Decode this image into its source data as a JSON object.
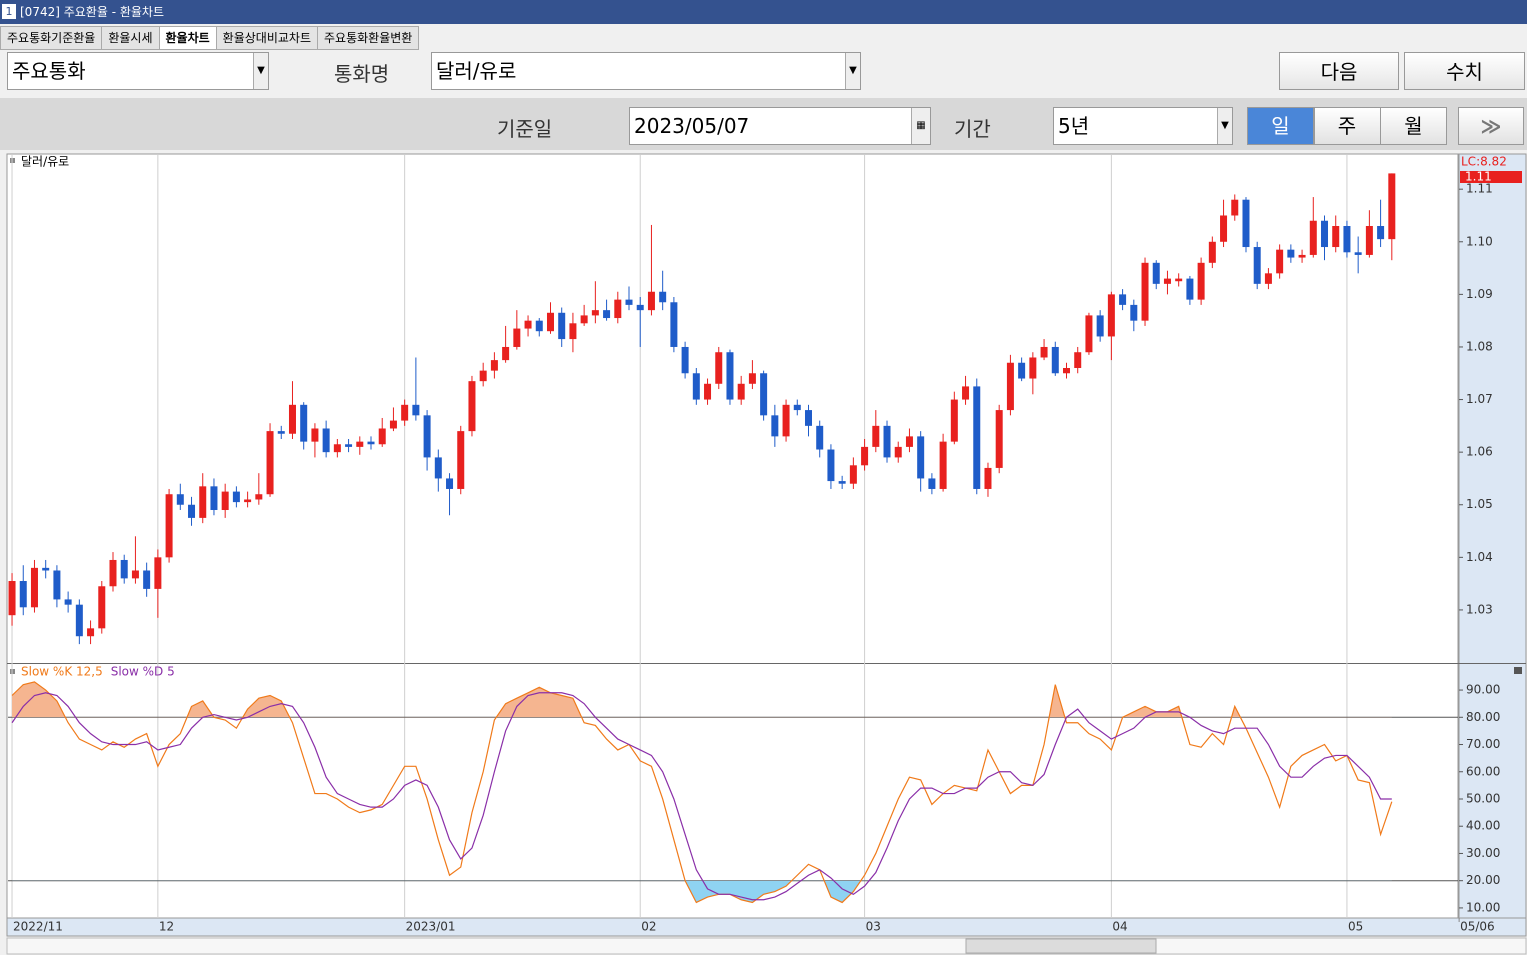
{
  "ui": {
    "window_title": "[0742] 주요환율 - 환율차트",
    "window_number": "1",
    "tabs": [
      "주요통화기준환율",
      "환율시세",
      "환율차트",
      "환율상대비교차트",
      "주요통화환율변환"
    ],
    "currency_group": "주요통화",
    "currency_name_label": "통화명",
    "currency_name": "달러/유로",
    "next_button": "다음",
    "values_button": "수치",
    "base_date_label": "기준일",
    "base_date": "2023/05/07",
    "period_label": "기간",
    "period": "5년",
    "intervals": [
      "일",
      "주",
      "월"
    ]
  },
  "chart_data": [
    {
      "type": "candlestick",
      "title": "달러/유로",
      "up_color": "#e8211f",
      "down_color": "#1f5cc9",
      "annotations": [
        "LC:8.82",
        "1.11"
      ],
      "xlim": [
        -0.36,
        128.9
      ],
      "xticks": [
        {
          "value": 0,
          "label": "2022/11"
        },
        {
          "value": 13,
          "label": "12"
        },
        {
          "value": 35,
          "label": "2023/01"
        },
        {
          "value": 56,
          "label": "02"
        },
        {
          "value": 76,
          "label": "03"
        },
        {
          "value": 98,
          "label": "04"
        },
        {
          "value": 119,
          "label": "05"
        },
        {
          "value": 129,
          "label": "05/06"
        }
      ],
      "ylim": [
        1.0201,
        1.1165
      ],
      "yticks": [
        1.03,
        1.04,
        1.05,
        1.06,
        1.07,
        1.08,
        1.09,
        {
          "value": 1.1,
          "label": "1.10"
        },
        1.11
      ],
      "ohlc": [
        [
          1.029,
          1.037,
          1.027,
          1.0355
        ],
        [
          1.0355,
          1.0385,
          1.029,
          1.0305
        ],
        [
          1.0305,
          1.0395,
          1.0295,
          1.038
        ],
        [
          1.038,
          1.0395,
          1.036,
          1.0375
        ],
        [
          1.0375,
          1.0385,
          1.0305,
          1.032
        ],
        [
          1.032,
          1.0335,
          1.0295,
          1.031
        ],
        [
          1.031,
          1.032,
          1.0235,
          1.025
        ],
        [
          1.025,
          1.028,
          1.0235,
          1.0265
        ],
        [
          1.0265,
          1.0355,
          1.0255,
          1.0345
        ],
        [
          1.0345,
          1.041,
          1.0335,
          1.0395
        ],
        [
          1.0395,
          1.0405,
          1.035,
          1.036
        ],
        [
          1.036,
          1.044,
          1.035,
          1.0375
        ],
        [
          1.0375,
          1.039,
          1.0325,
          1.034
        ],
        [
          1.034,
          1.0415,
          1.0285,
          1.04
        ],
        [
          1.04,
          1.053,
          1.039,
          1.052
        ],
        [
          1.052,
          1.054,
          1.049,
          1.05
        ],
        [
          1.05,
          1.0515,
          1.046,
          1.0475
        ],
        [
          1.0475,
          1.056,
          1.0465,
          1.0535
        ],
        [
          1.0535,
          1.055,
          1.048,
          1.049
        ],
        [
          1.049,
          1.054,
          1.0475,
          1.0525
        ],
        [
          1.0525,
          1.0535,
          1.0495,
          1.0505
        ],
        [
          1.0505,
          1.0525,
          1.0495,
          1.051
        ],
        [
          1.051,
          1.056,
          1.05,
          1.052
        ],
        [
          1.052,
          1.0655,
          1.0515,
          1.064
        ],
        [
          1.064,
          1.065,
          1.0625,
          1.0635
        ],
        [
          1.0635,
          1.0735,
          1.0625,
          1.069
        ],
        [
          1.069,
          1.0695,
          1.0605,
          1.062
        ],
        [
          1.062,
          1.0655,
          1.059,
          1.0645
        ],
        [
          1.0645,
          1.066,
          1.059,
          1.06
        ],
        [
          1.06,
          1.0625,
          1.059,
          1.0615
        ],
        [
          1.0615,
          1.0625,
          1.06,
          1.061
        ],
        [
          1.061,
          1.063,
          1.0595,
          1.062
        ],
        [
          1.062,
          1.063,
          1.0605,
          1.0615
        ],
        [
          1.0615,
          1.0665,
          1.061,
          1.0645
        ],
        [
          1.0645,
          1.0685,
          1.064,
          1.066
        ],
        [
          1.066,
          1.07,
          1.065,
          1.069
        ],
        [
          1.069,
          1.078,
          1.066,
          1.067
        ],
        [
          1.067,
          1.068,
          1.0565,
          1.059
        ],
        [
          1.059,
          1.0605,
          1.0525,
          1.055
        ],
        [
          1.055,
          1.056,
          1.048,
          1.053
        ],
        [
          1.053,
          1.065,
          1.052,
          1.064
        ],
        [
          1.064,
          1.0745,
          1.063,
          1.0735
        ],
        [
          1.0735,
          1.077,
          1.0725,
          1.0755
        ],
        [
          1.0755,
          1.079,
          1.074,
          1.0775
        ],
        [
          1.0775,
          1.084,
          1.077,
          1.08
        ],
        [
          1.08,
          1.087,
          1.0795,
          1.0835
        ],
        [
          1.0835,
          1.086,
          1.082,
          1.085
        ],
        [
          1.085,
          1.0855,
          1.082,
          1.083
        ],
        [
          1.083,
          1.0885,
          1.0825,
          1.0865
        ],
        [
          1.0865,
          1.0875,
          1.08,
          1.0815
        ],
        [
          1.0815,
          1.0865,
          1.079,
          1.0845
        ],
        [
          1.0845,
          1.088,
          1.084,
          1.086
        ],
        [
          1.086,
          1.0925,
          1.0845,
          1.087
        ],
        [
          1.087,
          1.089,
          1.085,
          1.0855
        ],
        [
          1.0855,
          1.0905,
          1.0845,
          1.089
        ],
        [
          1.089,
          1.0915,
          1.087,
          1.088
        ],
        [
          1.088,
          1.0895,
          1.08,
          1.087
        ],
        [
          1.087,
          1.1032,
          1.086,
          1.0905
        ],
        [
          1.0905,
          1.0945,
          1.087,
          1.0885
        ],
        [
          1.0885,
          1.0895,
          1.079,
          1.08
        ],
        [
          1.08,
          1.081,
          1.074,
          1.075
        ],
        [
          1.075,
          1.076,
          1.069,
          1.07
        ],
        [
          1.07,
          1.074,
          1.069,
          1.073
        ],
        [
          1.073,
          1.08,
          1.072,
          1.079
        ],
        [
          1.079,
          1.0795,
          1.069,
          1.07
        ],
        [
          1.07,
          1.0745,
          1.069,
          1.073
        ],
        [
          1.073,
          1.0775,
          1.072,
          1.075
        ],
        [
          1.075,
          1.0755,
          1.066,
          1.067
        ],
        [
          1.067,
          1.069,
          1.061,
          1.063
        ],
        [
          1.063,
          1.07,
          1.062,
          1.069
        ],
        [
          1.069,
          1.07,
          1.067,
          1.068
        ],
        [
          1.068,
          1.069,
          1.063,
          1.065
        ],
        [
          1.065,
          1.066,
          1.059,
          1.0605
        ],
        [
          1.0605,
          1.0615,
          1.053,
          1.0545
        ],
        [
          1.0545,
          1.0555,
          1.053,
          1.054
        ],
        [
          1.054,
          1.059,
          1.053,
          1.0575
        ],
        [
          1.0575,
          1.0625,
          1.0565,
          1.061
        ],
        [
          1.061,
          1.068,
          1.06,
          1.065
        ],
        [
          1.065,
          1.066,
          1.058,
          1.059
        ],
        [
          1.059,
          1.062,
          1.058,
          1.061
        ],
        [
          1.061,
          1.0645,
          1.06,
          1.063
        ],
        [
          1.063,
          1.064,
          1.0525,
          1.055
        ],
        [
          1.055,
          1.056,
          1.052,
          1.053
        ],
        [
          1.053,
          1.0635,
          1.0525,
          1.062
        ],
        [
          1.062,
          1.0715,
          1.0615,
          1.07
        ],
        [
          1.07,
          1.0745,
          1.069,
          1.0725
        ],
        [
          1.0725,
          1.074,
          1.052,
          1.053
        ],
        [
          1.053,
          1.058,
          1.0515,
          1.057
        ],
        [
          1.057,
          1.069,
          1.056,
          1.068
        ],
        [
          1.068,
          1.0785,
          1.067,
          1.077
        ],
        [
          1.077,
          1.078,
          1.0735,
          1.074
        ],
        [
          1.074,
          1.079,
          1.071,
          1.078
        ],
        [
          1.078,
          1.0815,
          1.0775,
          1.08
        ],
        [
          1.08,
          1.081,
          1.0745,
          1.075
        ],
        [
          1.075,
          1.077,
          1.074,
          1.076
        ],
        [
          1.076,
          1.08,
          1.075,
          1.079
        ],
        [
          1.079,
          1.0865,
          1.0785,
          1.086
        ],
        [
          1.086,
          1.087,
          1.081,
          1.082
        ],
        [
          1.082,
          1.0905,
          1.0775,
          1.09
        ],
        [
          1.09,
          1.091,
          1.087,
          1.088
        ],
        [
          1.088,
          1.089,
          1.083,
          1.085
        ],
        [
          1.085,
          1.097,
          1.084,
          1.096
        ],
        [
          1.096,
          1.0965,
          1.091,
          1.092
        ],
        [
          1.092,
          1.0945,
          1.09,
          1.093
        ],
        [
          1.0925,
          1.094,
          1.0915,
          1.093
        ],
        [
          1.093,
          1.0935,
          1.088,
          1.089
        ],
        [
          1.089,
          1.097,
          1.088,
          1.096
        ],
        [
          1.096,
          1.101,
          1.095,
          1.1
        ],
        [
          1.1,
          1.108,
          1.099,
          1.105
        ],
        [
          1.105,
          1.109,
          1.104,
          1.108
        ],
        [
          1.108,
          1.1085,
          1.098,
          1.099
        ],
        [
          1.099,
          1.1,
          1.091,
          1.092
        ],
        [
          1.092,
          1.095,
          1.091,
          1.094
        ],
        [
          1.094,
          1.0995,
          1.093,
          1.0985
        ],
        [
          1.0985,
          1.0995,
          1.096,
          1.097
        ],
        [
          1.097,
          1.0985,
          1.096,
          1.0975
        ],
        [
          1.0975,
          1.1085,
          1.097,
          1.104
        ],
        [
          1.104,
          1.105,
          1.0965,
          1.099
        ],
        [
          1.099,
          1.105,
          1.098,
          1.103
        ],
        [
          1.103,
          1.104,
          1.097,
          1.098
        ],
        [
          1.098,
          1.101,
          1.094,
          1.0975
        ],
        [
          1.0975,
          1.106,
          1.097,
          1.103
        ],
        [
          1.103,
          1.108,
          1.099,
          1.1005
        ],
        [
          1.1005,
          1.113,
          1.0965,
          1.113
        ]
      ]
    },
    {
      "type": "line",
      "ylim": [
        6.3,
        99.2
      ],
      "yticks": [
        {
          "value": 10,
          "label": "10.00"
        },
        {
          "value": 20,
          "label": "20.00"
        },
        {
          "value": 30,
          "label": "30.00"
        },
        {
          "value": 40,
          "label": "40.00"
        },
        {
          "value": 50,
          "label": "50.00"
        },
        {
          "value": 60,
          "label": "60.00"
        },
        {
          "value": 70,
          "label": "70.00"
        },
        {
          "value": 80,
          "label": "80.00"
        },
        {
          "value": 90,
          "label": "90.00"
        }
      ],
      "levels": [
        20,
        80
      ],
      "overbought_color": "#f5b590",
      "oversold_color": "#8fd3f2",
      "series": [
        {
          "name": "Slow %K 12,5",
          "color": "#f07a1a",
          "values": [
            88,
            92,
            93,
            90,
            86,
            78,
            72,
            70,
            68,
            71,
            69,
            72,
            74,
            62,
            70,
            74,
            84,
            86,
            80,
            79,
            76,
            83,
            87,
            88,
            86,
            78,
            65,
            52,
            52,
            50,
            47,
            45,
            46,
            48,
            55,
            62,
            62,
            50,
            35,
            22,
            25,
            45,
            60,
            79,
            85,
            87,
            89,
            91,
            89,
            88,
            87,
            78,
            77,
            72,
            68,
            70,
            64,
            62,
            50,
            35,
            20,
            12,
            14,
            15,
            15,
            13,
            12,
            15,
            16,
            18,
            22,
            26,
            24,
            14,
            12,
            16,
            22,
            30,
            40,
            50,
            58,
            57,
            48,
            52,
            55,
            54,
            53,
            68,
            60,
            52,
            55,
            55,
            70,
            92,
            78,
            78,
            74,
            72,
            68,
            80,
            82,
            84,
            82,
            82,
            84,
            70,
            69,
            74,
            70,
            84,
            76,
            67,
            58,
            47,
            62,
            66,
            68,
            70,
            64,
            66,
            57,
            56,
            37,
            49
          ]
        },
        {
          "name": "Slow %D 5",
          "color": "#8a2fa8",
          "values": [
            78,
            84,
            88,
            89,
            88,
            84,
            78,
            74,
            71,
            70,
            70,
            70,
            71,
            68,
            69,
            70,
            76,
            80,
            81,
            80,
            79,
            80,
            82,
            84,
            85,
            84,
            78,
            69,
            58,
            52,
            50,
            48,
            47,
            47,
            50,
            55,
            57,
            55,
            47,
            35,
            28,
            32,
            44,
            60,
            75,
            84,
            88,
            89,
            89,
            89,
            88,
            85,
            80,
            76,
            72,
            70,
            68,
            66,
            60,
            50,
            37,
            24,
            17,
            15,
            15,
            14,
            13,
            13,
            14,
            16,
            19,
            22,
            24,
            21,
            17,
            15,
            18,
            23,
            32,
            42,
            50,
            54,
            54,
            52,
            52,
            54,
            54,
            58,
            60,
            60,
            56,
            55,
            59,
            70,
            80,
            83,
            78,
            75,
            72,
            74,
            76,
            80,
            82,
            82,
            82,
            80,
            77,
            75,
            74,
            76,
            76,
            76,
            70,
            62,
            58,
            58,
            62,
            65,
            66,
            66,
            62,
            58,
            50,
            50
          ]
        }
      ]
    }
  ]
}
